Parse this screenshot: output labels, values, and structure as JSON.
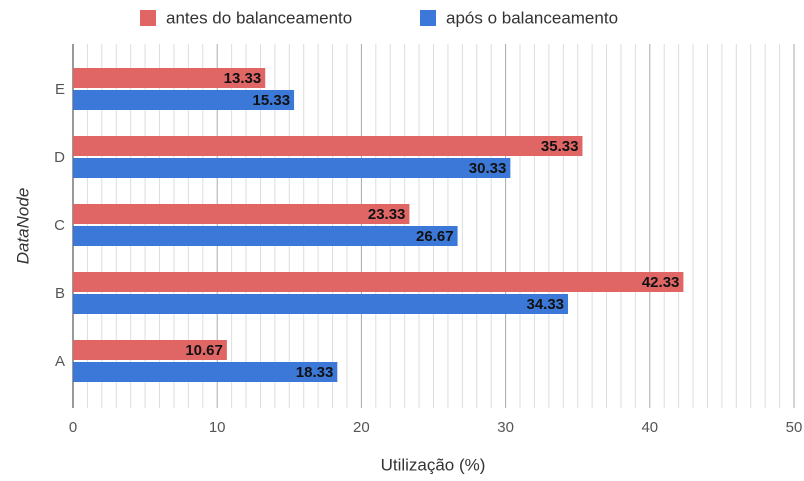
{
  "chart_data": {
    "type": "bar",
    "orientation": "horizontal",
    "x_label": "Utilização (%)",
    "y_label": "DataNode",
    "categories": [
      "A",
      "B",
      "C",
      "D",
      "E"
    ],
    "series": [
      {
        "name": "antes do balanceamento",
        "color": "#e06666",
        "values": [
          10.67,
          42.33,
          23.33,
          35.33,
          13.33
        ]
      },
      {
        "name": "após o balanceamento",
        "color": "#3c78d8",
        "values": [
          18.33,
          34.33,
          26.67,
          30.33,
          15.33
        ]
      }
    ],
    "xlim": [
      0,
      50
    ],
    "xticks": [
      0,
      10,
      20,
      30,
      40,
      50
    ],
    "grid": true,
    "minor_grid": true,
    "legend": "top"
  }
}
